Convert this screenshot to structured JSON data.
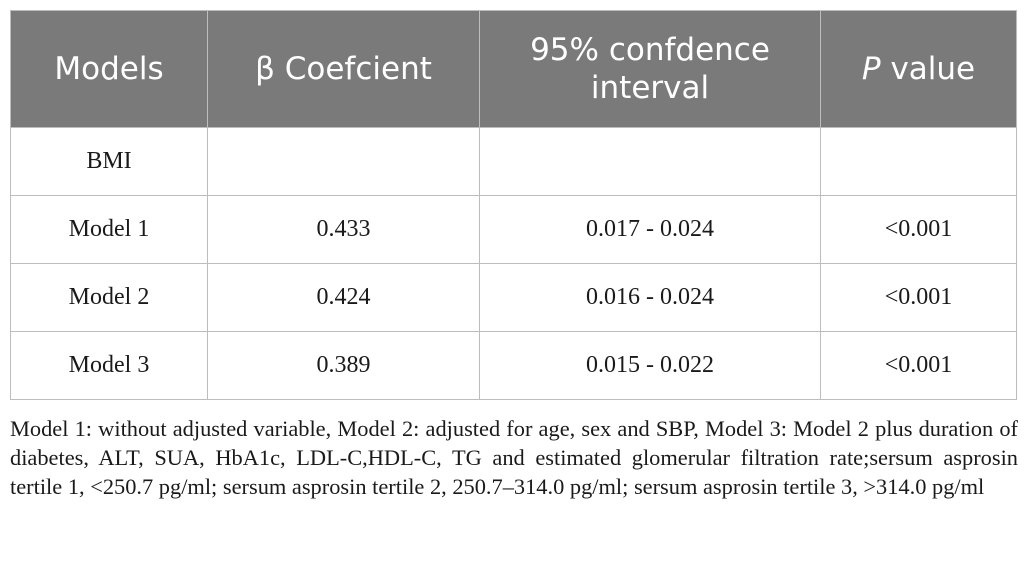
{
  "table": {
    "headers": {
      "models": "Models",
      "beta": "β Coefcient",
      "ci": "95% confdence interval",
      "p_italic": "P",
      "p_rest": "value"
    },
    "rows": [
      {
        "model": "BMI",
        "beta": "",
        "ci": "",
        "p": ""
      },
      {
        "model": "Model 1",
        "beta": "0.433",
        "ci": "0.017 - 0.024",
        "p": "<0.001"
      },
      {
        "model": "Model 2",
        "beta": "0.424",
        "ci": "0.016 - 0.024",
        "p": "<0.001"
      },
      {
        "model": "Model 3",
        "beta": "0.389",
        "ci": "0.015 - 0.022",
        "p": "<0.001"
      }
    ]
  },
  "footnote": "Model 1: without adjusted variable, Model 2: adjusted for age, sex and SBP, Model 3: Model 2 plus duration of diabetes, ALT, SUA, HbA1c, LDL-C,HDL-C, TG and estimated glomerular filtration rate;sersum asprosin tertile 1, <250.7 pg/ml; sersum asprosin tertile 2, 250.7–314.0 pg/ml; sersum asprosin tertile 3, >314.0 pg/ml"
}
